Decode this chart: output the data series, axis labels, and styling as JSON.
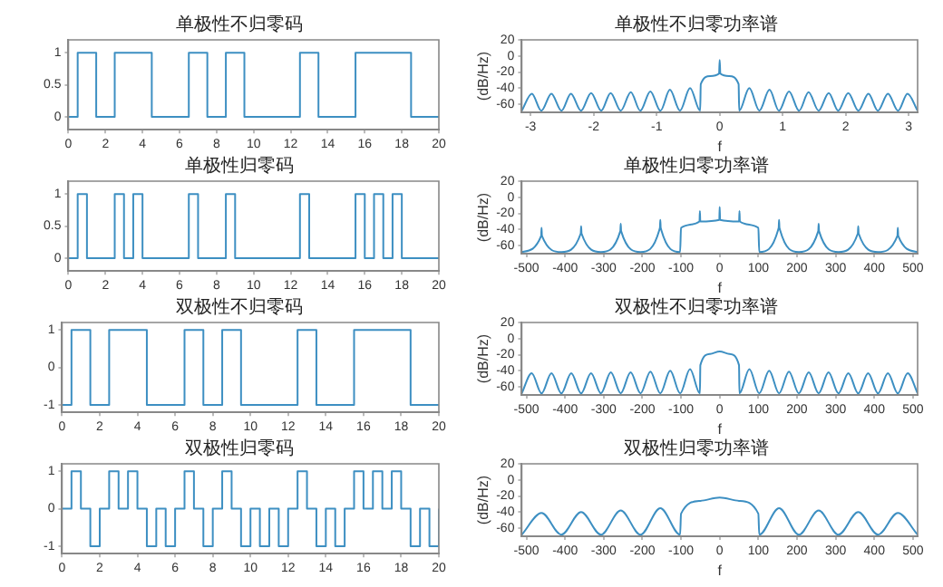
{
  "chart_data": [
    {
      "type": "step",
      "title": "单极性不归零码",
      "color": "#3d8fc2",
      "xlim": [
        0,
        20
      ],
      "xticks": [
        0,
        2,
        4,
        6,
        8,
        10,
        12,
        14,
        16,
        18,
        20
      ],
      "ylim": [
        -0.2,
        1.2
      ],
      "yticks": [
        0,
        0.5,
        1
      ],
      "x": [
        0,
        0.5,
        1.5,
        2.5,
        4.5,
        6.5,
        7.5,
        8.5,
        9.5,
        12.5,
        13.5,
        15.5,
        18.5,
        20
      ],
      "values": [
        0,
        1,
        0,
        1,
        0,
        1,
        0,
        1,
        0,
        1,
        0,
        1,
        0,
        0
      ]
    },
    {
      "type": "line",
      "title": "单极性不归零功率谱",
      "xlabel": "f",
      "ylabel": "(dB/Hz)",
      "color": "#3d8fc2",
      "xlim": [
        -3.14,
        3.14
      ],
      "xticks": [
        -3,
        -2,
        -1,
        0,
        1,
        2,
        3
      ],
      "ylim": [
        -70,
        20
      ],
      "yticks": [
        -60,
        -40,
        -20,
        0,
        20
      ],
      "x": [
        -3.14,
        -2.98,
        -2.83,
        -2.67,
        -2.51,
        -2.36,
        -2.2,
        -2.04,
        -1.88,
        -1.73,
        -1.57,
        -1.41,
        -1.26,
        -1.1,
        -0.94,
        -0.79,
        -0.63,
        -0.47,
        -0.31,
        -0.3,
        -0.15,
        -0.01,
        0,
        0.01,
        0.15,
        0.3,
        0.31,
        0.47,
        0.63,
        0.79,
        0.94,
        1.1,
        1.26,
        1.41,
        1.57,
        1.73,
        1.88,
        2.04,
        2.2,
        2.36,
        2.51,
        2.67,
        2.83,
        2.98,
        3.14
      ],
      "values": [
        -68,
        -47,
        -68,
        -47,
        -68,
        -47,
        -68,
        -46,
        -68,
        -46,
        -68,
        -45,
        -68,
        -44,
        -68,
        -42,
        -68,
        -40,
        -68,
        -35,
        -25,
        -22,
        -5,
        -22,
        -25,
        -35,
        -68,
        -40,
        -68,
        -42,
        -68,
        -44,
        -68,
        -45,
        -68,
        -46,
        -68,
        -46,
        -68,
        -47,
        -68,
        -47,
        -68,
        -47,
        -68
      ]
    },
    {
      "type": "step",
      "title": "单极性归零码",
      "color": "#3d8fc2",
      "xlim": [
        0,
        20
      ],
      "xticks": [
        0,
        2,
        4,
        6,
        8,
        10,
        12,
        14,
        16,
        18,
        20
      ],
      "ylim": [
        -0.2,
        1.2
      ],
      "yticks": [
        0,
        0.5,
        1
      ],
      "x": [
        0,
        0.5,
        1,
        2.5,
        3,
        3.5,
        4,
        6.5,
        7,
        8.5,
        9,
        12.5,
        13,
        15.5,
        16,
        16.5,
        17,
        17.5,
        18,
        20
      ],
      "values": [
        0,
        1,
        0,
        1,
        0,
        1,
        0,
        1,
        0,
        1,
        0,
        1,
        0,
        1,
        0,
        1,
        0,
        1,
        0,
        0
      ]
    },
    {
      "type": "line",
      "title": "单极性归零功率谱",
      "xlabel": "f",
      "ylabel": "(dB/Hz)",
      "color": "#3d8fc2",
      "xlim": [
        -512,
        512
      ],
      "xticks": [
        -500,
        -400,
        -300,
        -200,
        -100,
        0,
        100,
        200,
        300,
        400,
        500
      ],
      "ylim": [
        -70,
        20
      ],
      "yticks": [
        -60,
        -40,
        -20,
        0,
        20
      ],
      "x": [
        -512,
        -461.8,
        -460.8,
        -459.8,
        -409.6,
        -359.4,
        -358.4,
        -357.4,
        -307.2,
        -257,
        -256,
        -255,
        -204.8,
        -154.6,
        -153.6,
        -152.6,
        -102.4,
        -100,
        -52.2,
        -51.2,
        -50.2,
        -1,
        0,
        1,
        50.2,
        51.2,
        52.2,
        100,
        102.4,
        152.6,
        153.6,
        154.6,
        204.8,
        255,
        256,
        257,
        307.2,
        357.4,
        358.4,
        359.4,
        409.6,
        459.8,
        460.8,
        461.8,
        512
      ],
      "values": [
        -68,
        -48,
        -38,
        -48,
        -68,
        -45,
        -36,
        -45,
        -68,
        -42,
        -33,
        -42,
        -68,
        -38,
        -28,
        -38,
        -68,
        -38,
        -30,
        -17,
        -30,
        -28,
        -12,
        -28,
        -30,
        -17,
        -30,
        -38,
        -68,
        -38,
        -28,
        -38,
        -68,
        -42,
        -33,
        -42,
        -68,
        -45,
        -36,
        -45,
        -68,
        -48,
        -38,
        -48,
        -68
      ]
    },
    {
      "type": "step",
      "title": "双极性不归零码",
      "color": "#3d8fc2",
      "xlim": [
        0,
        20
      ],
      "xticks": [
        0,
        2,
        4,
        6,
        8,
        10,
        12,
        14,
        16,
        18,
        20
      ],
      "ylim": [
        -1.2,
        1.2
      ],
      "yticks": [
        -1,
        0,
        1
      ],
      "x": [
        0,
        0.5,
        1.5,
        2.5,
        4.5,
        6.5,
        7.5,
        8.5,
        9.5,
        12.5,
        13.5,
        15.5,
        18.5,
        20
      ],
      "values": [
        -1,
        1,
        -1,
        1,
        -1,
        1,
        -1,
        1,
        -1,
        1,
        -1,
        1,
        -1,
        -1
      ]
    },
    {
      "type": "line",
      "title": "双极性不归零功率谱",
      "xlabel": "f",
      "ylabel": "(dB/Hz)",
      "color": "#3d8fc2",
      "xlim": [
        -512,
        512
      ],
      "xticks": [
        -500,
        -400,
        -300,
        -200,
        -100,
        0,
        100,
        200,
        300,
        400,
        500
      ],
      "ylim": [
        -70,
        20
      ],
      "yticks": [
        -60,
        -40,
        -20,
        0,
        20
      ],
      "x": [
        -512,
        -486.4,
        -460.8,
        -435.2,
        -409.6,
        -384,
        -358.4,
        -332.8,
        -307.2,
        -281.6,
        -256,
        -230.4,
        -204.8,
        -179.2,
        -153.6,
        -128,
        -102.4,
        -76.8,
        -51.2,
        -50,
        -25,
        0,
        25,
        50,
        51.2,
        76.8,
        102.4,
        128,
        153.6,
        179.2,
        204.8,
        230.4,
        256,
        281.6,
        307.2,
        332.8,
        358.4,
        384,
        409.6,
        435.2,
        460.8,
        486.4,
        512
      ],
      "values": [
        -68,
        -43,
        -68,
        -43,
        -68,
        -43,
        -68,
        -43,
        -68,
        -42,
        -68,
        -42,
        -68,
        -41,
        -68,
        -40,
        -68,
        -38,
        -68,
        -33,
        -19,
        -16,
        -19,
        -33,
        -68,
        -38,
        -68,
        -40,
        -68,
        -41,
        -68,
        -42,
        -68,
        -42,
        -68,
        -43,
        -68,
        -43,
        -68,
        -43,
        -68,
        -43,
        -68
      ]
    },
    {
      "type": "step",
      "title": "双极性归零码",
      "color": "#3d8fc2",
      "xlim": [
        0,
        20
      ],
      "xticks": [
        0,
        2,
        4,
        6,
        8,
        10,
        12,
        14,
        16,
        18,
        20
      ],
      "ylim": [
        -1.2,
        1.2
      ],
      "yticks": [
        -1,
        0,
        1
      ],
      "x": [
        0,
        0.5,
        1,
        1.5,
        2,
        2.5,
        3,
        3.5,
        4,
        4.5,
        5,
        5.5,
        6,
        6.5,
        7,
        7.5,
        8,
        8.5,
        9,
        9.5,
        10,
        10.5,
        11,
        11.5,
        12,
        12.5,
        13,
        13.5,
        14,
        14.5,
        15,
        15.5,
        16,
        16.5,
        17,
        17.5,
        18,
        18.5,
        19,
        19.5,
        20
      ],
      "values": [
        0,
        1,
        0,
        -1,
        0,
        1,
        0,
        1,
        0,
        -1,
        0,
        -1,
        0,
        1,
        0,
        -1,
        0,
        1,
        0,
        -1,
        0,
        -1,
        0,
        -1,
        0,
        1,
        0,
        -1,
        0,
        -1,
        0,
        1,
        0,
        1,
        0,
        1,
        0,
        -1,
        0,
        -1,
        0
      ]
    },
    {
      "type": "line",
      "title": "双极性归零功率谱",
      "xlabel": "f",
      "ylabel": "(dB/Hz)",
      "color": "#3d8fc2",
      "xlim": [
        -512,
        512
      ],
      "xticks": [
        -500,
        -400,
        -300,
        -200,
        -100,
        0,
        100,
        200,
        300,
        400,
        500
      ],
      "ylim": [
        -70,
        20
      ],
      "yticks": [
        -60,
        -40,
        -20,
        0,
        20
      ],
      "x": [
        -512,
        -460.8,
        -409.6,
        -358.4,
        -307.2,
        -256,
        -204.8,
        -153.6,
        -102.4,
        -100,
        -50,
        0,
        50,
        100,
        102.4,
        153.6,
        204.8,
        256,
        307.2,
        358.4,
        409.6,
        460.8,
        512
      ],
      "values": [
        -68,
        -41,
        -68,
        -40,
        -68,
        -38,
        -68,
        -35,
        -68,
        -42,
        -26,
        -22,
        -26,
        -42,
        -68,
        -35,
        -68,
        -38,
        -68,
        -40,
        -68,
        -41,
        -68
      ]
    }
  ]
}
